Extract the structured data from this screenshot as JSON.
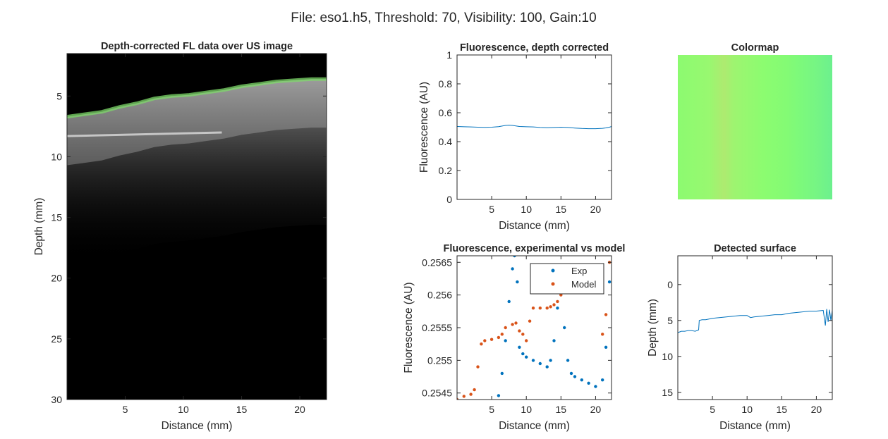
{
  "figure_title": "File: eso1.h5, Threshold: 70, Visibility: 100, Gain:10",
  "colors": {
    "axis": "#262626",
    "blue": "#0072BD",
    "orange": "#D95319",
    "fl_green": "#7dd86a"
  },
  "chart_data": [
    {
      "id": "us_image",
      "type": "heatmap",
      "title": "Depth-corrected FL data over US image",
      "xlabel": "Distance (mm)",
      "ylabel": "Depth (mm)",
      "xlim": [
        0,
        22.3
      ],
      "ylim": [
        1.5,
        30
      ],
      "y_reversed": true,
      "xticks": [
        5,
        10,
        15,
        20
      ],
      "yticks": [
        5,
        10,
        15,
        20,
        25,
        30
      ],
      "surface_depth": [
        [
          0,
          6.7
        ],
        [
          1.5,
          6.5
        ],
        [
          3,
          6.3
        ],
        [
          4.5,
          5.9
        ],
        [
          6,
          5.6
        ],
        [
          7.5,
          5.2
        ],
        [
          9,
          5.0
        ],
        [
          10.5,
          4.9
        ],
        [
          12,
          4.7
        ],
        [
          13.5,
          4.5
        ],
        [
          15,
          4.2
        ],
        [
          16.5,
          4.0
        ],
        [
          18,
          3.8
        ],
        [
          19.5,
          3.7
        ],
        [
          21,
          3.6
        ],
        [
          22.3,
          3.6
        ]
      ]
    },
    {
      "id": "fl_depth_corrected",
      "type": "line",
      "title": "Fluorescence, depth corrected",
      "xlabel": "Distance (mm)",
      "ylabel": "Fluorescence (AU)",
      "xlim": [
        0,
        22.3
      ],
      "ylim": [
        0,
        1
      ],
      "xticks": [
        5,
        10,
        15,
        20
      ],
      "yticks": [
        0,
        0.2,
        0.4,
        0.6,
        0.8,
        1
      ],
      "series": [
        {
          "color": "#0072BD",
          "x": [
            0,
            1,
            2,
            3,
            4,
            5,
            6,
            7,
            7.5,
            8,
            9,
            10,
            11,
            12,
            13,
            14,
            15,
            16,
            17,
            18,
            19,
            20,
            21,
            21.5,
            22,
            22.3
          ],
          "y": [
            0.505,
            0.503,
            0.502,
            0.5,
            0.499,
            0.5,
            0.504,
            0.512,
            0.514,
            0.512,
            0.505,
            0.503,
            0.502,
            0.498,
            0.496,
            0.498,
            0.5,
            0.498,
            0.494,
            0.491,
            0.49,
            0.49,
            0.492,
            0.495,
            0.5,
            0.505
          ]
        }
      ]
    },
    {
      "id": "colormap",
      "type": "heatmap",
      "title": "Colormap",
      "stops": [
        [
          0.0,
          "#8cfb70"
        ],
        [
          0.2,
          "#98f870"
        ],
        [
          0.3,
          "#aeea70"
        ],
        [
          0.36,
          "#9ef470"
        ],
        [
          0.55,
          "#8cfc70"
        ],
        [
          0.7,
          "#84fb74"
        ],
        [
          0.8,
          "#7cf97c"
        ],
        [
          0.9,
          "#76f584"
        ],
        [
          1.0,
          "#6cf08e"
        ]
      ]
    },
    {
      "id": "fl_exp_vs_model",
      "type": "scatter",
      "title": "Fluorescence, experimental vs model",
      "xlabel": "Distance (mm)",
      "ylabel": "Fluorescence (AU)",
      "xlim": [
        0,
        22.3
      ],
      "ylim": [
        0.2544,
        0.2566
      ],
      "xticks": [
        5,
        10,
        15,
        20
      ],
      "yticks": [
        0.2545,
        0.255,
        0.2555,
        0.256,
        0.2565
      ],
      "ytick_labels": [
        "0.2545",
        "0.255",
        "0.2555",
        "0.256",
        "0.2565"
      ],
      "legend": "top-right",
      "series": [
        {
          "name": "Exp",
          "color": "#0072BD",
          "x": [
            0,
            1,
            2,
            3,
            4,
            5,
            6,
            6.5,
            7,
            7.5,
            8,
            8.3,
            8.7,
            9,
            9.5,
            10,
            11,
            12,
            13,
            13.5,
            14,
            14.5,
            15,
            15.5,
            16,
            16.5,
            17,
            18,
            19,
            20,
            21,
            21.5,
            22
          ],
          "y": [
            0.2544,
            0.25438,
            0.25437,
            0.25436,
            0.25434,
            0.25436,
            0.25446,
            0.2548,
            0.2553,
            0.2559,
            0.2564,
            0.2566,
            0.2562,
            0.2552,
            0.2551,
            0.25505,
            0.255,
            0.25495,
            0.2549,
            0.255,
            0.2553,
            0.2558,
            0.2562,
            0.2555,
            0.255,
            0.2548,
            0.25475,
            0.2547,
            0.25465,
            0.2546,
            0.2547,
            0.2552,
            0.2562
          ]
        },
        {
          "name": "Model",
          "color": "#D95319",
          "x": [
            0,
            1,
            2,
            2.5,
            3,
            3.5,
            4,
            5,
            6,
            6.5,
            7,
            8,
            8.5,
            9,
            9.5,
            10,
            10.5,
            11,
            12,
            13,
            13.5,
            14,
            14.5,
            15,
            15.5,
            16,
            16.5,
            17,
            18,
            19,
            20,
            20.5,
            21,
            21.5,
            22
          ],
          "y": [
            0.2544,
            0.25445,
            0.25448,
            0.25455,
            0.2549,
            0.25525,
            0.2553,
            0.25532,
            0.25535,
            0.2554,
            0.2555,
            0.25555,
            0.25557,
            0.25545,
            0.2554,
            0.2553,
            0.2556,
            0.2558,
            0.2558,
            0.2558,
            0.25582,
            0.25585,
            0.2559,
            0.256,
            0.25605,
            0.2561,
            0.25612,
            0.25615,
            0.2562,
            0.25622,
            0.25626,
            0.2563,
            0.2554,
            0.2557,
            0.2565
          ]
        }
      ]
    },
    {
      "id": "detected_surface",
      "type": "line",
      "title": "Detected surface",
      "xlabel": "Distance (mm)",
      "ylabel": "Depth (mm)",
      "xlim": [
        0,
        22.3
      ],
      "ylim": [
        -4,
        16
      ],
      "y_reversed": true,
      "xticks": [
        5,
        10,
        15,
        20
      ],
      "yticks": [
        0,
        5,
        10,
        15
      ],
      "series": [
        {
          "color": "#0072BD",
          "x": [
            0,
            0.5,
            1,
            1.5,
            2,
            2.5,
            3,
            3.1,
            3.5,
            4,
            5,
            6,
            7,
            8,
            9,
            10,
            10.5,
            11,
            12,
            13,
            14,
            15,
            16,
            17,
            18,
            19,
            20,
            21,
            21.3,
            21.5,
            21.7,
            21.9,
            22.1,
            22.3
          ],
          "y": [
            6.7,
            6.5,
            6.5,
            6.4,
            6.4,
            6.5,
            6.3,
            5.0,
            4.9,
            4.9,
            4.7,
            4.6,
            4.5,
            4.4,
            4.3,
            4.3,
            4.6,
            4.5,
            4.4,
            4.3,
            4.2,
            4.2,
            4.0,
            3.9,
            3.8,
            3.7,
            3.7,
            3.6,
            5.7,
            3.4,
            5.2,
            3.5,
            5.0,
            3.6
          ]
        }
      ]
    }
  ]
}
